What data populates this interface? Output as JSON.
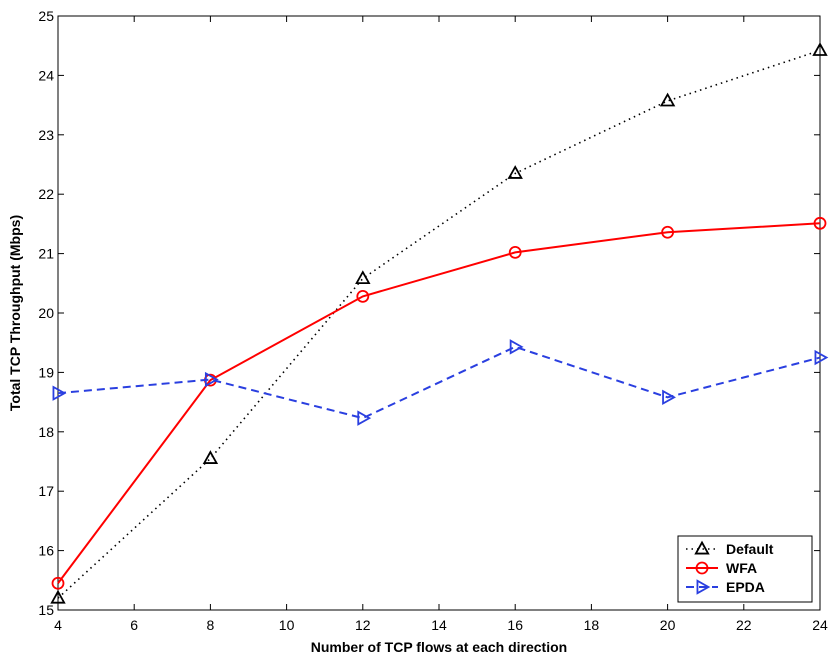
{
  "chart_data": {
    "type": "line",
    "title": "",
    "xlabel": "Number of TCP flows at each direction",
    "ylabel": "Total TCP Throughput (Mbps)",
    "xlim": [
      4,
      24
    ],
    "ylim": [
      15,
      25
    ],
    "xticks": [
      4,
      6,
      8,
      10,
      12,
      14,
      16,
      18,
      20,
      22,
      24
    ],
    "yticks": [
      15,
      16,
      17,
      18,
      19,
      20,
      21,
      22,
      23,
      24,
      25
    ],
    "grid": false,
    "legend_position": "bottom-right",
    "series": [
      {
        "name": "Default",
        "color": "#000000",
        "line_style": "dotted",
        "marker": "triangle-up",
        "x": [
          4,
          8,
          12,
          16,
          20,
          24
        ],
        "y": [
          15.2,
          17.55,
          20.58,
          22.35,
          23.57,
          24.42
        ]
      },
      {
        "name": "WFA",
        "color": "#ff0000",
        "line_style": "solid",
        "marker": "circle",
        "x": [
          4,
          8,
          12,
          16,
          20,
          24
        ],
        "y": [
          15.45,
          18.87,
          20.28,
          21.02,
          21.36,
          21.51
        ]
      },
      {
        "name": "EPDA",
        "color": "#2a3fe0",
        "line_style": "dashed",
        "marker": "triangle-right",
        "x": [
          4,
          8,
          12,
          16,
          20,
          24
        ],
        "y": [
          18.65,
          18.88,
          18.23,
          19.43,
          18.58,
          19.25
        ]
      }
    ]
  }
}
